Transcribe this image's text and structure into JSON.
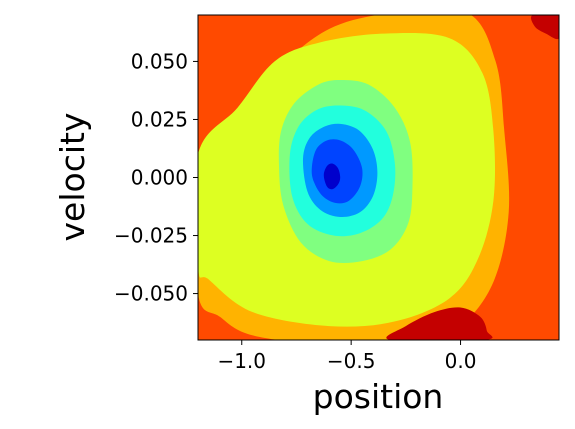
{
  "chart_data": {
    "type": "contour",
    "xlabel": "position",
    "ylabel": "velocity",
    "xlim": [
      -1.2,
      0.45
    ],
    "ylim": [
      -0.07,
      0.07
    ],
    "x_ticks": [
      {
        "value": -1.0,
        "label": "−1.0"
      },
      {
        "value": -0.5,
        "label": "−0.5"
      },
      {
        "value": 0.0,
        "label": "0.0"
      }
    ],
    "y_ticks": [
      {
        "value": 0.05,
        "label": "0.050"
      },
      {
        "value": 0.025,
        "label": "0.025"
      },
      {
        "value": 0.0,
        "label": "0.000"
      },
      {
        "value": -0.025,
        "label": "−0.025"
      },
      {
        "value": -0.05,
        "label": "−0.050"
      }
    ],
    "colormap": "jet",
    "level_colors": [
      "#0000cc",
      "#0044ff",
      "#0099ff",
      "#22ffdd",
      "#80ff80",
      "#ddff22",
      "#ffb300",
      "#ff4a00",
      "#c40000"
    ],
    "contour_levels": [
      {
        "color": "#ffb300",
        "points": [
          [
            -1.2,
            0.0
          ],
          [
            -0.98,
            0.025
          ],
          [
            -0.85,
            0.045
          ],
          [
            -0.6,
            0.064
          ],
          [
            -0.3,
            0.071
          ],
          [
            0.03,
            0.071
          ],
          [
            0.16,
            0.05
          ],
          [
            0.2,
            0.02
          ],
          [
            0.22,
            -0.015
          ],
          [
            0.15,
            -0.045
          ],
          [
            0.0,
            -0.064
          ],
          [
            -0.2,
            -0.072
          ],
          [
            -0.6,
            -0.072
          ],
          [
            -0.95,
            -0.068
          ],
          [
            -1.1,
            -0.06
          ],
          [
            -1.2,
            -0.05
          ]
        ]
      },
      {
        "color": "#ddff22",
        "points": [
          [
            -1.2,
            0.01
          ],
          [
            -1.02,
            0.03
          ],
          [
            -0.85,
            0.05
          ],
          [
            -0.65,
            0.058
          ],
          [
            -0.35,
            0.062
          ],
          [
            -0.05,
            0.06
          ],
          [
            0.1,
            0.045
          ],
          [
            0.15,
            0.02
          ],
          [
            0.15,
            -0.01
          ],
          [
            0.08,
            -0.035
          ],
          [
            -0.05,
            -0.052
          ],
          [
            -0.3,
            -0.062
          ],
          [
            -0.6,
            -0.064
          ],
          [
            -0.95,
            -0.058
          ],
          [
            -1.15,
            -0.044
          ],
          [
            -1.2,
            -0.038
          ]
        ]
      },
      {
        "color": "#80ff80",
        "points": [
          [
            -0.82,
            0.02
          ],
          [
            -0.76,
            0.032
          ],
          [
            -0.65,
            0.04
          ],
          [
            -0.55,
            0.042
          ],
          [
            -0.42,
            0.04
          ],
          [
            -0.3,
            0.03
          ],
          [
            -0.23,
            0.015
          ],
          [
            -0.22,
            -0.005
          ],
          [
            -0.24,
            -0.02
          ],
          [
            -0.32,
            -0.031
          ],
          [
            -0.45,
            -0.036
          ],
          [
            -0.6,
            -0.036
          ],
          [
            -0.73,
            -0.028
          ],
          [
            -0.81,
            -0.012
          ],
          [
            -0.83,
            0.005
          ]
        ]
      },
      {
        "color": "#22ffdd",
        "points": [
          [
            -0.78,
            0.01
          ],
          [
            -0.74,
            0.022
          ],
          [
            -0.66,
            0.029
          ],
          [
            -0.56,
            0.031
          ],
          [
            -0.44,
            0.029
          ],
          [
            -0.34,
            0.02
          ],
          [
            -0.3,
            0.006
          ],
          [
            -0.31,
            -0.008
          ],
          [
            -0.36,
            -0.018
          ],
          [
            -0.46,
            -0.024
          ],
          [
            -0.58,
            -0.025
          ],
          [
            -0.7,
            -0.02
          ],
          [
            -0.77,
            -0.008
          ]
        ]
      },
      {
        "color": "#0099ff",
        "points": [
          [
            -0.72,
            0.008
          ],
          [
            -0.69,
            0.017
          ],
          [
            -0.62,
            0.022
          ],
          [
            -0.54,
            0.023
          ],
          [
            -0.46,
            0.02
          ],
          [
            -0.4,
            0.012
          ],
          [
            -0.38,
            0.002
          ],
          [
            -0.4,
            -0.008
          ],
          [
            -0.46,
            -0.015
          ],
          [
            -0.55,
            -0.017
          ],
          [
            -0.64,
            -0.014
          ],
          [
            -0.7,
            -0.006
          ]
        ]
      },
      {
        "color": "#0044ff",
        "points": [
          [
            -0.68,
            0.004
          ],
          [
            -0.66,
            0.012
          ],
          [
            -0.61,
            0.016
          ],
          [
            -0.55,
            0.016
          ],
          [
            -0.49,
            0.012
          ],
          [
            -0.45,
            0.004
          ],
          [
            -0.46,
            -0.004
          ],
          [
            -0.51,
            -0.01
          ],
          [
            -0.57,
            -0.011
          ],
          [
            -0.63,
            -0.008
          ],
          [
            -0.67,
            -0.002
          ]
        ]
      },
      {
        "color": "#0000cc",
        "points": [
          [
            -0.625,
            0.001
          ],
          [
            -0.61,
            0.005
          ],
          [
            -0.585,
            0.006
          ],
          [
            -0.56,
            0.004
          ],
          [
            -0.55,
            0.0
          ],
          [
            -0.56,
            -0.003
          ],
          [
            -0.585,
            -0.005
          ],
          [
            -0.61,
            -0.004
          ]
        ]
      },
      {
        "color": "#c40000",
        "points": [
          [
            0.33,
            0.07
          ],
          [
            0.34,
            0.065
          ],
          [
            0.39,
            0.062
          ],
          [
            0.45,
            0.06
          ],
          [
            0.45,
            0.07
          ]
        ]
      },
      {
        "color": "#c40000",
        "points": [
          [
            -0.32,
            -0.07
          ],
          [
            -0.25,
            -0.064
          ],
          [
            -0.12,
            -0.058
          ],
          [
            0.0,
            -0.056
          ],
          [
            0.09,
            -0.06
          ],
          [
            0.12,
            -0.066
          ],
          [
            0.11,
            -0.07
          ]
        ]
      }
    ]
  }
}
